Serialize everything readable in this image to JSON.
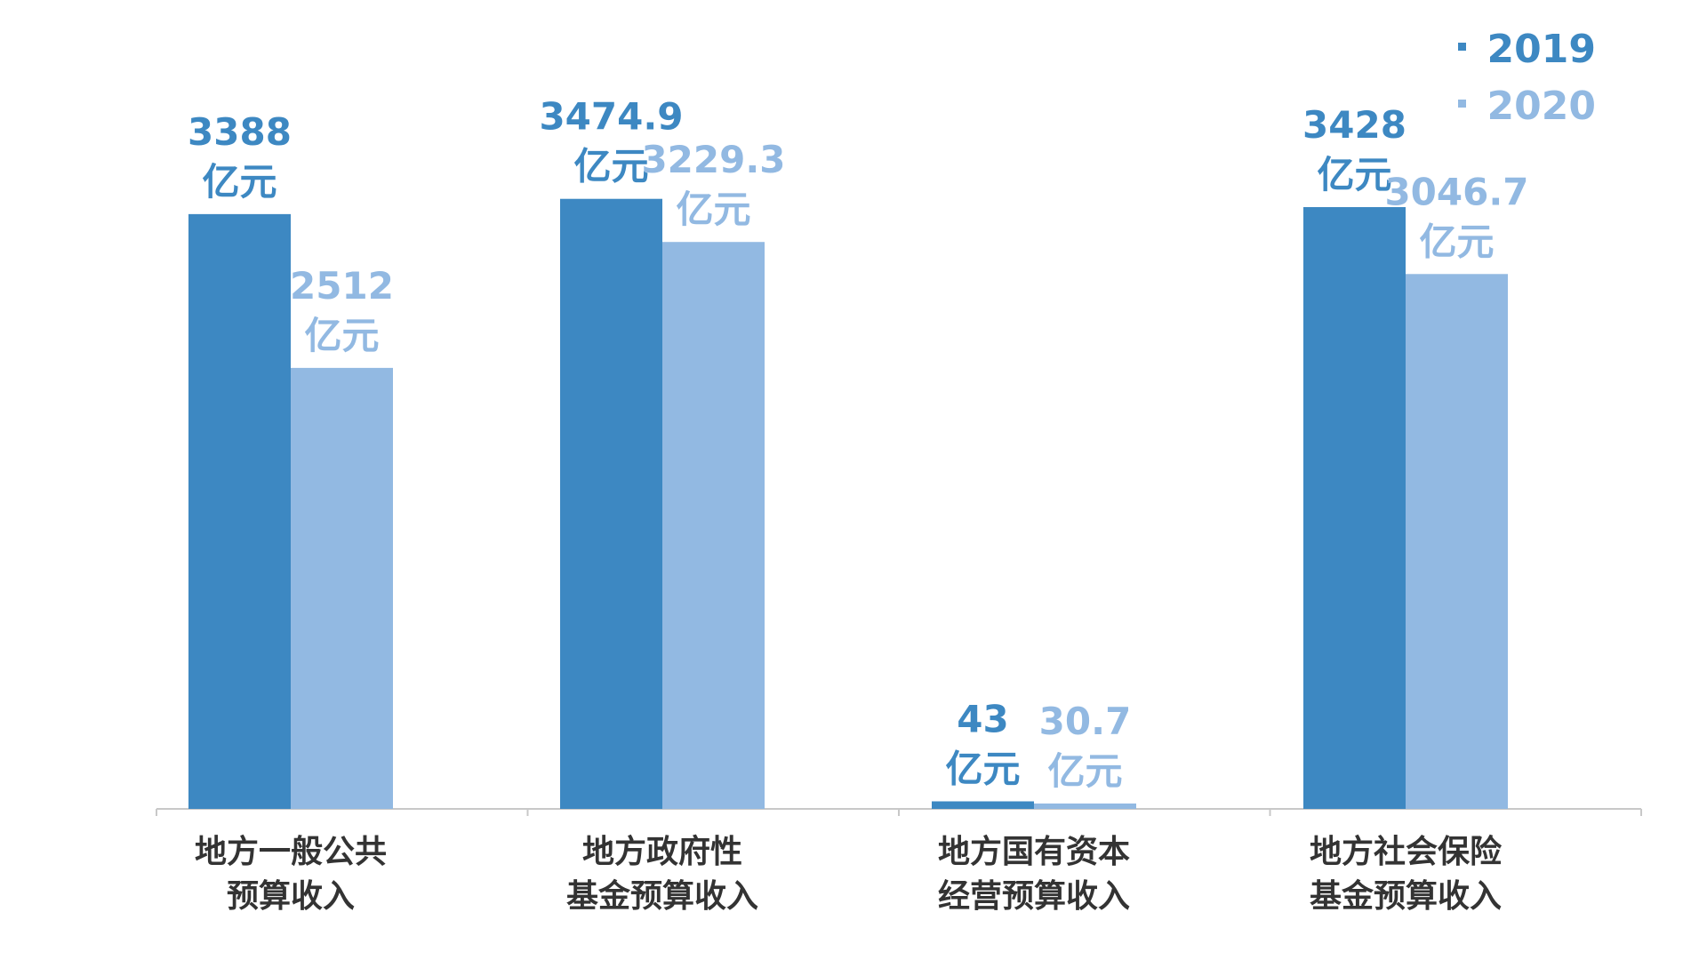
{
  "chart_data": {
    "type": "bar",
    "categories": [
      [
        "地方一般公共",
        "预算收入"
      ],
      [
        "地方政府性",
        "基金预算收入"
      ],
      [
        "地方国有资本",
        "经营预算收入"
      ],
      [
        "地方社会保险",
        "基金预算收入"
      ]
    ],
    "series": [
      {
        "name": "2019",
        "values": [
          3388,
          3474.9,
          43,
          3428
        ],
        "labels": [
          "3388",
          "3474.9",
          "43",
          "3428"
        ],
        "color": "#3d88c2"
      },
      {
        "name": "2020",
        "values": [
          2512,
          3229.3,
          30.7,
          3046.7
        ],
        "labels": [
          "2512",
          "3229.3",
          "30.7",
          "3046.7"
        ],
        "color": "#92b9e2"
      }
    ],
    "unit": "亿元",
    "ylim": [
      0,
      3500
    ],
    "legend": "top-right",
    "grid": false
  }
}
